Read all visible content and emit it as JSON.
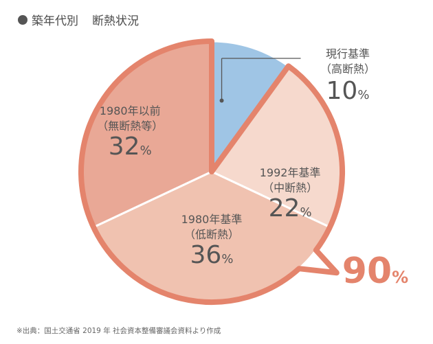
{
  "header": {
    "title": "築年代別",
    "subtitle": "断熱状況"
  },
  "source": "※出典：国土交通省 2019 年 社会資本整備審議会資料より作成",
  "chart_data": {
    "type": "pie",
    "slices": [
      {
        "label": "現行基準",
        "sublabel": "（高断熱）",
        "value": 10,
        "color": "#9fc5e5"
      },
      {
        "label": "1992年基準",
        "sublabel": "（中断熱）",
        "value": 22,
        "color": "#f6d9cd"
      },
      {
        "label": "1980年基準",
        "sublabel": "（低断熱）",
        "value": 36,
        "color": "#f0c2b0"
      },
      {
        "label": "1980年以前",
        "sublabel": "（無断熱等）",
        "value": 32,
        "color": "#e9a896"
      }
    ],
    "callout": {
      "value": 90,
      "unit": "%",
      "color": "#e4846c"
    },
    "percent_unit": "%",
    "outline_color": "#e4846c"
  }
}
